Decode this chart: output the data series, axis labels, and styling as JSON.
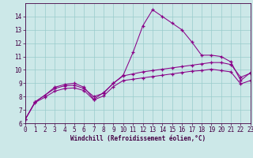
{
  "title": "",
  "xlabel": "Windchill (Refroidissement éolien,°C)",
  "bg_color": "#cce8e8",
  "line_color": "#880088",
  "grid_color": "#99cccc",
  "spine_color": "#440044",
  "tick_color": "#440044",
  "x": [
    0,
    1,
    2,
    3,
    4,
    5,
    6,
    7,
    8,
    9,
    10,
    11,
    12,
    13,
    14,
    15,
    16,
    17,
    18,
    19,
    20,
    21,
    22,
    23
  ],
  "line1": [
    6.3,
    7.6,
    8.1,
    8.7,
    8.9,
    9.0,
    8.7,
    7.8,
    8.3,
    9.0,
    9.6,
    11.3,
    13.3,
    14.5,
    14.0,
    13.5,
    13.0,
    12.1,
    11.1,
    11.1,
    11.0,
    10.6,
    9.2,
    9.8
  ],
  "line2": [
    6.3,
    7.6,
    8.1,
    8.6,
    8.8,
    8.85,
    8.6,
    8.0,
    8.25,
    9.0,
    9.55,
    9.7,
    9.85,
    9.95,
    10.05,
    10.15,
    10.25,
    10.35,
    10.45,
    10.55,
    10.55,
    10.4,
    9.45,
    9.75
  ],
  "line3": [
    6.3,
    7.55,
    7.95,
    8.4,
    8.6,
    8.65,
    8.45,
    7.75,
    8.05,
    8.75,
    9.2,
    9.3,
    9.4,
    9.5,
    9.6,
    9.7,
    9.8,
    9.9,
    9.95,
    10.05,
    9.95,
    9.85,
    8.95,
    9.2
  ],
  "xlim": [
    0,
    23
  ],
  "ylim": [
    6,
    15
  ],
  "yticks": [
    6,
    7,
    8,
    9,
    10,
    11,
    12,
    13,
    14
  ],
  "xticks": [
    0,
    1,
    2,
    3,
    4,
    5,
    6,
    7,
    8,
    9,
    10,
    11,
    12,
    13,
    14,
    15,
    16,
    17,
    18,
    19,
    20,
    21,
    22,
    23
  ],
  "tick_fontsize": 5.5,
  "xlabel_fontsize": 5.5
}
